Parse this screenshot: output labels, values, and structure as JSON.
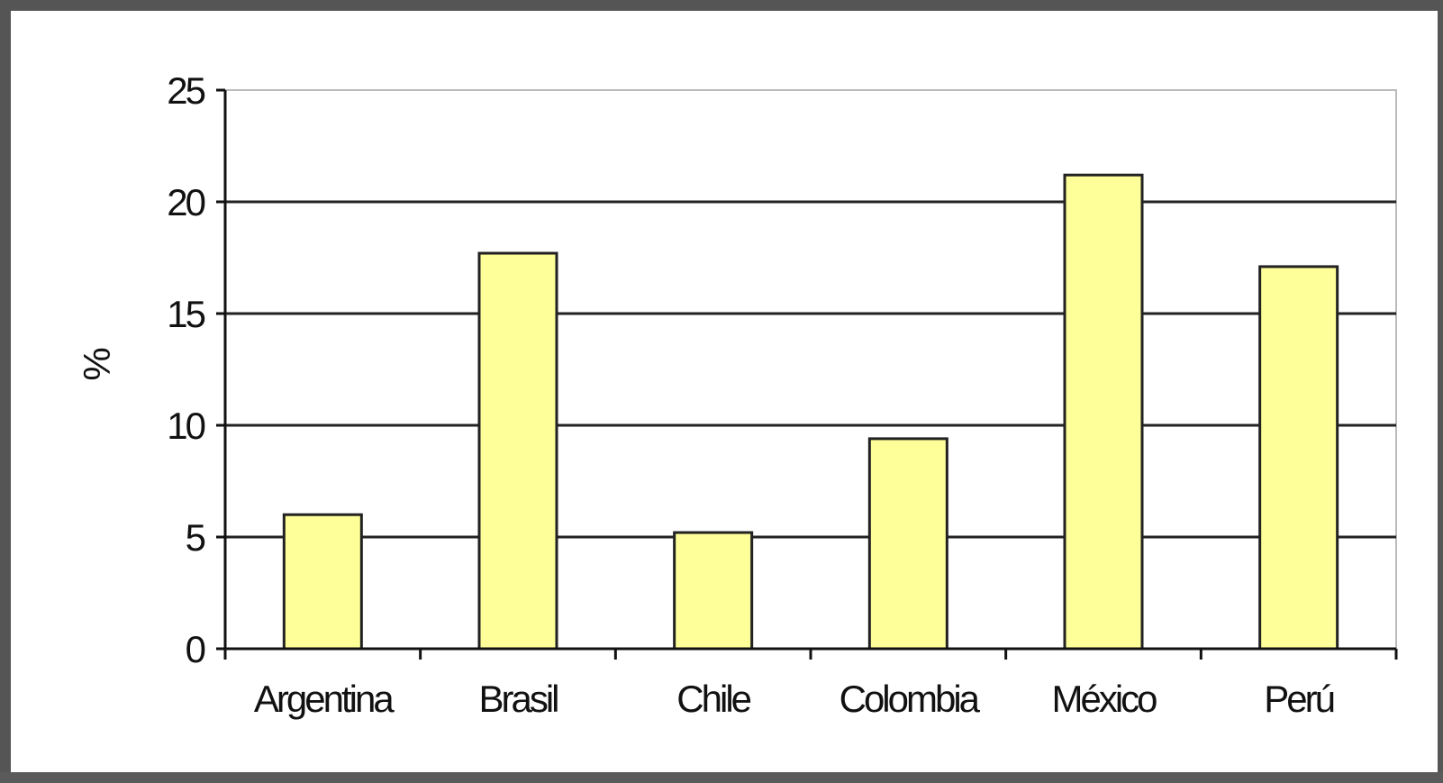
{
  "chart_data": {
    "type": "bar",
    "title": "",
    "xlabel": "",
    "ylabel": "%",
    "categories": [
      "Argentina",
      "Brasil",
      "Chile",
      "Colombia",
      "México",
      "Perú"
    ],
    "values": [
      6.0,
      17.7,
      5.2,
      9.4,
      21.2,
      17.1
    ],
    "ylim": [
      0,
      25
    ],
    "yticks": [
      "0",
      "5",
      "10",
      "15",
      "20",
      "25"
    ],
    "grid": true,
    "legend": "none",
    "bar_color": "#ffff99",
    "bar_edge_color": "#222222",
    "gridline_color": "#222222"
  }
}
